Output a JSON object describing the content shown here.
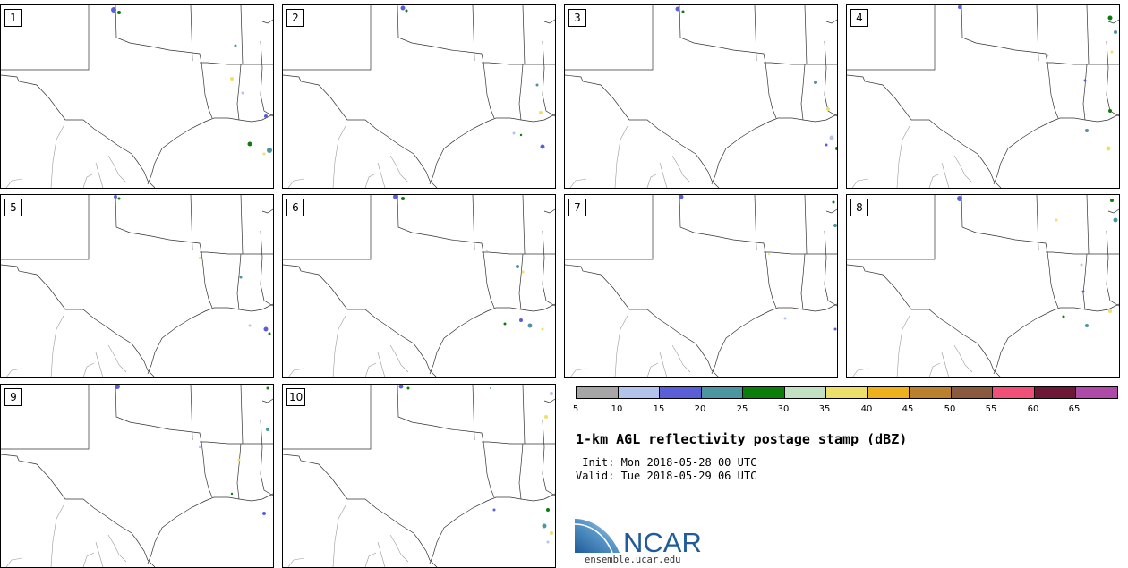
{
  "panels": [
    {
      "label": "1"
    },
    {
      "label": "2"
    },
    {
      "label": "3"
    },
    {
      "label": "4"
    },
    {
      "label": "5"
    },
    {
      "label": "6"
    },
    {
      "label": "7"
    },
    {
      "label": "8"
    },
    {
      "label": "9"
    },
    {
      "label": "10"
    }
  ],
  "colorbar": {
    "colors": [
      "#a6a6a6",
      "#b4c3ec",
      "#5a5fd8",
      "#4b96a0",
      "#0a7d0a",
      "#c2e0c2",
      "#ede06a",
      "#efb01e",
      "#b9802e",
      "#8a5a3e",
      "#f05078",
      "#6e1838",
      "#b04aa8"
    ],
    "ticks": [
      "5",
      "10",
      "15",
      "20",
      "25",
      "30",
      "35",
      "40",
      "45",
      "50",
      "55",
      "60",
      "65"
    ]
  },
  "title": "1-km AGL reflectivity postage stamp (dBZ)",
  "init": " Init: Mon 2018-05-28 00 UTC",
  "valid": "Valid: Tue 2018-05-29 06 UTC",
  "logo": {
    "text": "NCAR",
    "url": "ensemble.ucar.edu",
    "brand_color": "#1f5c99"
  }
}
